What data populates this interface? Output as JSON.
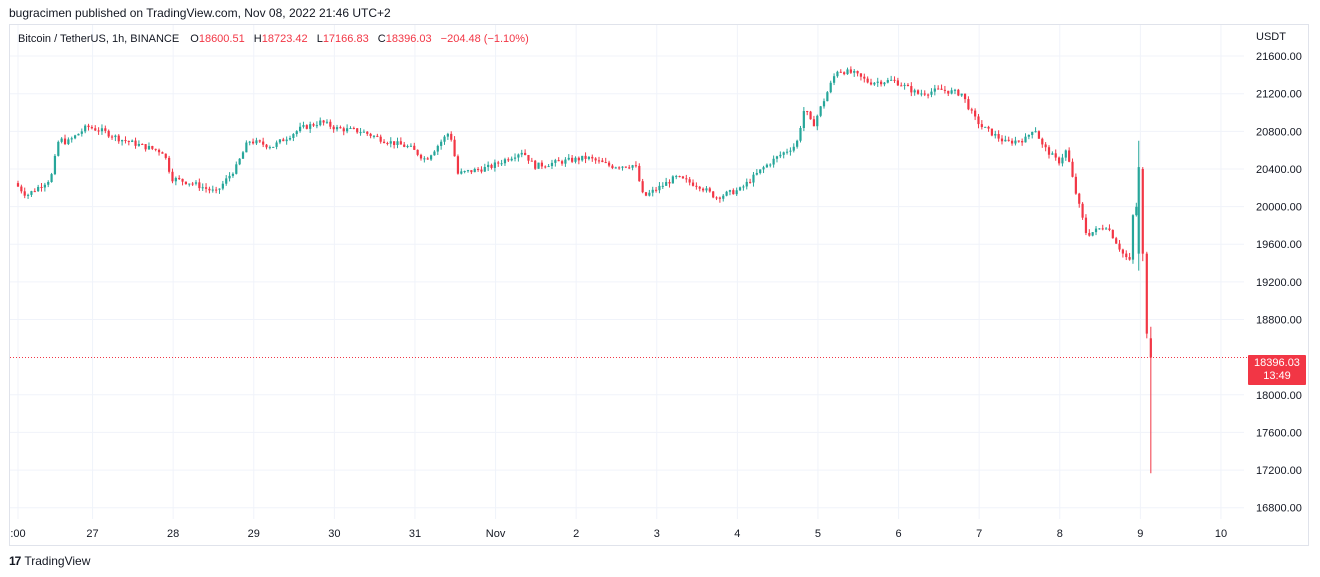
{
  "header": {
    "published_line": "bugracimen published on TradingView.com, Nov 08, 2022 21:46 UTC+2"
  },
  "legend": {
    "symbol": "Bitcoin / TetherUS, 1h, BINANCE",
    "o_label": "O",
    "o_value": "18600.51",
    "h_label": "H",
    "h_value": "18723.42",
    "l_label": "L",
    "l_value": "17166.83",
    "c_label": "C",
    "c_value": "18396.03",
    "change": "−204.48 (−1.10%)"
  },
  "price_tag": {
    "price": "18396.03",
    "countdown": "13:49"
  },
  "footer": {
    "logo_text": "TradingView",
    "logo_mark": "17"
  },
  "colors": {
    "up": "#26a69a",
    "down": "#f23645",
    "grid": "#f0f3fa"
  },
  "chart_data": {
    "type": "candlestick",
    "symbol": "BTCUSDT",
    "timeframe": "1h",
    "y_axis_unit": "USDT",
    "y_ticks": [
      "21600.00",
      "21200.00",
      "20800.00",
      "20400.00",
      "20000.00",
      "19600.00",
      "19200.00",
      "18800.00",
      "18000.00",
      "17600.00",
      "17200.00",
      "16800.00"
    ],
    "ylim": [
      16680,
      21930
    ],
    "x_ticks": [
      ":00",
      "27",
      "28",
      "29",
      "30",
      "31",
      "Nov",
      "2",
      "3",
      "4",
      "5",
      "6",
      "7",
      "8",
      "9",
      "10"
    ],
    "x_tick_times": [
      0.0,
      0.925,
      1.925,
      2.925,
      3.925,
      4.925,
      5.925,
      6.925,
      7.925,
      8.925,
      9.925,
      10.925,
      11.925,
      12.925,
      13.925,
      14.925
    ],
    "x_range": [
      0.0,
      15.0
    ],
    "last_price": 18396.03,
    "anchors": [
      [
        0.0,
        20250
      ],
      [
        0.15,
        20120
      ],
      [
        0.45,
        20300
      ],
      [
        0.55,
        20720
      ],
      [
        0.65,
        20680
      ],
      [
        0.9,
        20850
      ],
      [
        1.1,
        20800
      ],
      [
        1.3,
        20720
      ],
      [
        1.6,
        20640
      ],
      [
        1.85,
        20580
      ],
      [
        1.95,
        20300
      ],
      [
        2.2,
        20250
      ],
      [
        2.5,
        20150
      ],
      [
        2.75,
        20420
      ],
      [
        2.9,
        20700
      ],
      [
        3.2,
        20640
      ],
      [
        3.55,
        20830
      ],
      [
        3.8,
        20900
      ],
      [
        4.0,
        20830
      ],
      [
        4.3,
        20800
      ],
      [
        4.6,
        20700
      ],
      [
        4.9,
        20630
      ],
      [
        5.1,
        20500
      ],
      [
        5.4,
        20800
      ],
      [
        5.5,
        20350
      ],
      [
        5.9,
        20420
      ],
      [
        6.3,
        20590
      ],
      [
        6.45,
        20430
      ],
      [
        6.8,
        20480
      ],
      [
        7.1,
        20520
      ],
      [
        7.4,
        20430
      ],
      [
        7.7,
        20440
      ],
      [
        7.8,
        20100
      ],
      [
        8.2,
        20310
      ],
      [
        8.5,
        20220
      ],
      [
        8.7,
        20100
      ],
      [
        9.0,
        20180
      ],
      [
        9.3,
        20420
      ],
      [
        9.5,
        20550
      ],
      [
        9.7,
        20660
      ],
      [
        9.8,
        21050
      ],
      [
        9.9,
        20850
      ],
      [
        10.05,
        21150
      ],
      [
        10.2,
        21450
      ],
      [
        10.4,
        21420
      ],
      [
        10.6,
        21320
      ],
      [
        10.9,
        21340
      ],
      [
        11.0,
        21300
      ],
      [
        11.2,
        21200
      ],
      [
        11.5,
        21240
      ],
      [
        11.75,
        21200
      ],
      [
        11.9,
        20950
      ],
      [
        12.0,
        20850
      ],
      [
        12.3,
        20680
      ],
      [
        12.55,
        20720
      ],
      [
        12.65,
        20850
      ],
      [
        12.75,
        20650
      ],
      [
        12.95,
        20470
      ],
      [
        13.05,
        20600
      ],
      [
        13.15,
        20200
      ],
      [
        13.3,
        19700
      ],
      [
        13.55,
        19800
      ],
      [
        13.75,
        19500
      ],
      [
        13.85,
        19400
      ],
      [
        13.9,
        20400
      ],
      [
        13.95,
        19200
      ],
      [
        14.0,
        18680
      ],
      [
        14.06,
        18396
      ]
    ],
    "special_candles": [
      {
        "t": 13.905,
        "o": 19500,
        "h": 20700,
        "l": 19320,
        "c": 20420
      },
      {
        "t": 13.955,
        "o": 20400,
        "h": 20420,
        "l": 19420,
        "c": 19500
      },
      {
        "t": 14.005,
        "o": 19500,
        "h": 19520,
        "l": 18600,
        "c": 18650
      },
      {
        "t": 14.055,
        "o": 18600.51,
        "h": 18723.42,
        "l": 17166.83,
        "c": 18396.03
      }
    ]
  }
}
